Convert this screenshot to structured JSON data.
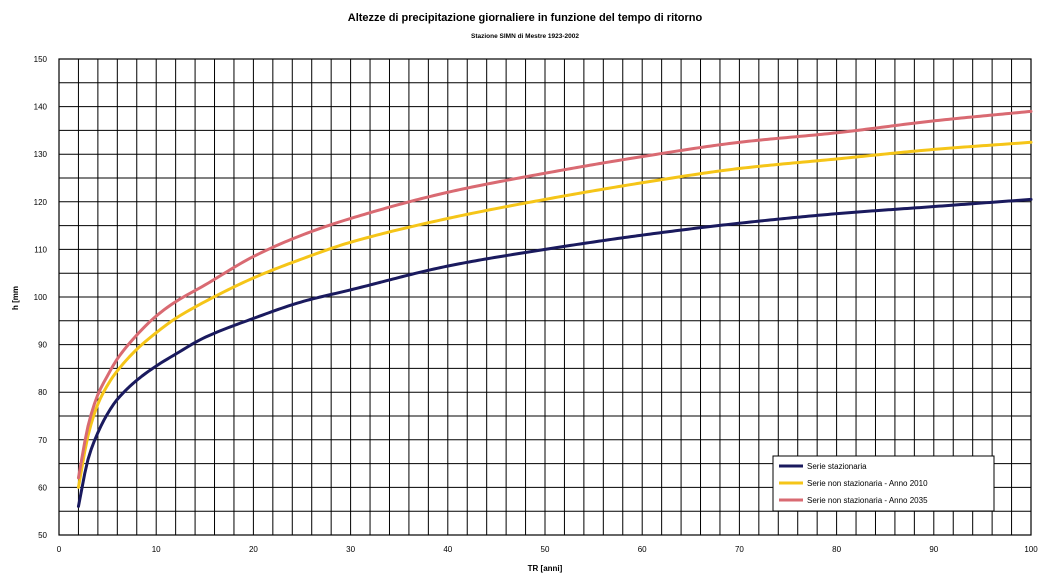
{
  "chart_data": {
    "type": "line",
    "title": "Altezze di precipitazione giornaliere in funzione del tempo di ritorno",
    "subtitle": "Stazione SIMN di Mestre 1923-2002",
    "xlabel": "TR [anni]",
    "ylabel": "h [mm",
    "xlim": [
      0,
      100
    ],
    "ylim": [
      50,
      150
    ],
    "xticks": [
      0,
      10,
      20,
      30,
      40,
      50,
      60,
      70,
      80,
      90,
      100
    ],
    "yticks": [
      50,
      60,
      70,
      80,
      90,
      100,
      110,
      120,
      130,
      140,
      150
    ],
    "grid": true,
    "legend_position": "bottom-right",
    "series": [
      {
        "name": "Serie stazionaria",
        "color": "#1a1a5e",
        "x": [
          2,
          3,
          4,
          5,
          6,
          8,
          10,
          12,
          15,
          20,
          25,
          30,
          40,
          50,
          60,
          70,
          80,
          90,
          100
        ],
        "values": [
          56,
          66,
          71.5,
          75.5,
          78.5,
          82.5,
          85.5,
          88,
          91.5,
          95.5,
          99,
          101.5,
          106.5,
          110,
          113,
          115.5,
          117.5,
          119,
          120.5
        ]
      },
      {
        "name": "Serie non stazionaria - Anno 2010",
        "color": "#f5c518",
        "x": [
          2,
          3,
          4,
          5,
          6,
          8,
          10,
          12,
          15,
          20,
          25,
          30,
          40,
          50,
          60,
          70,
          80,
          90,
          100
        ],
        "values": [
          60,
          71,
          77.5,
          81.5,
          84.5,
          89,
          92.5,
          95.5,
          99,
          104,
          108,
          111.5,
          116.5,
          120.5,
          124,
          127,
          129,
          131,
          132.5
        ]
      },
      {
        "name": "Serie non stazionaria - Anno 2035",
        "color": "#d96a72",
        "x": [
          2,
          3,
          4,
          5,
          6,
          8,
          10,
          12,
          15,
          20,
          25,
          30,
          40,
          50,
          60,
          70,
          80,
          90,
          100
        ],
        "values": [
          62,
          73,
          79.5,
          83.5,
          87,
          92,
          96,
          99,
          102.5,
          108.5,
          113,
          116.5,
          122,
          126,
          129.5,
          132.5,
          134.5,
          137,
          139
        ]
      }
    ]
  }
}
